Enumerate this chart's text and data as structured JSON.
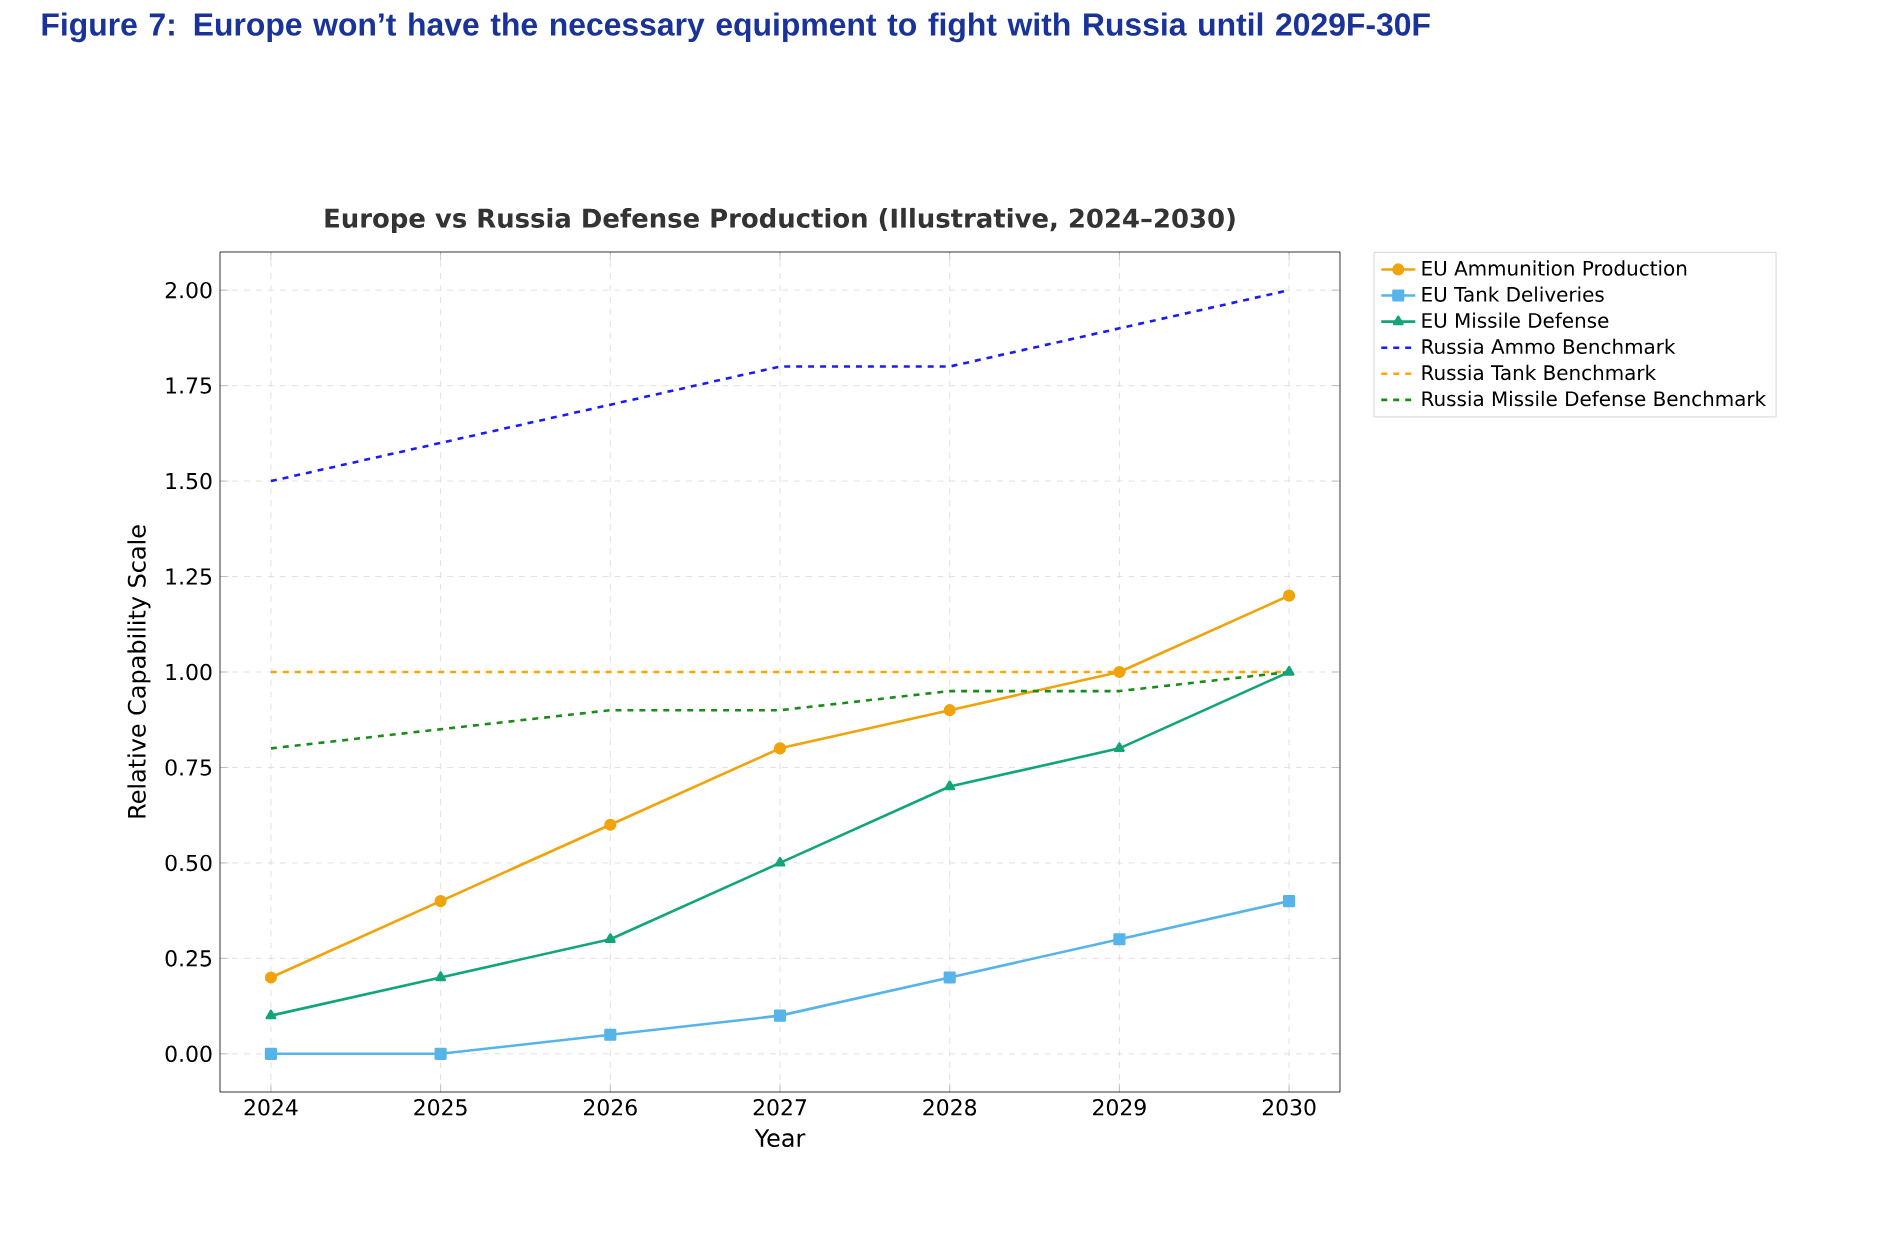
{
  "chart_data": {
    "type": "line",
    "title": "Figure 7: Europe won’t have the necessary equipment to fight with Russia until 2029F-30F",
    "subtitle": "Europe vs Russia Defense Production (Illustrative, 2024–2030)",
    "xlabel": "Year",
    "ylabel": "Relative Capability Scale",
    "x": [
      2024,
      2025,
      2026,
      2027,
      2028,
      2029,
      2030
    ],
    "xlim": [
      2023.7,
      2030.3
    ],
    "xticks": [
      2024,
      2025,
      2026,
      2027,
      2028,
      2029,
      2030
    ],
    "ylim": [
      -0.1,
      2.1
    ],
    "yticks": [
      {
        "value": 0,
        "label": "0.00"
      },
      {
        "value": 0.25,
        "label": "0.25"
      },
      {
        "value": 0.5,
        "label": "0.50"
      },
      {
        "value": 0.75,
        "label": "0.75"
      },
      {
        "value": 1,
        "label": "1.00"
      },
      {
        "value": 1.25,
        "label": "1.25"
      },
      {
        "value": 1.5,
        "label": "1.50"
      },
      {
        "value": 1.75,
        "label": "1.75"
      },
      {
        "value": 2,
        "label": "2.00"
      }
    ],
    "grid": true,
    "legend": "right",
    "series": [
      {
        "name": "EU Ammunition Production",
        "color": "#f0a30a",
        "marker": "circle",
        "line_style": "solid",
        "values": [
          0.2,
          0.4,
          0.6,
          0.8,
          0.9,
          1.0,
          1.2
        ]
      },
      {
        "name": "EU Tank Deliveries",
        "color": "#56b4e9",
        "marker": "square",
        "line_style": "solid",
        "values": [
          0,
          0,
          0.05,
          0.1,
          0.2,
          0.3,
          0.4
        ]
      },
      {
        "name": "EU Missile Defense",
        "color": "#12a579",
        "marker": "triangle",
        "line_style": "solid",
        "values": [
          0.1,
          0.2,
          0.3,
          0.5,
          0.7,
          0.8,
          1.0
        ]
      },
      {
        "name": "Russia Ammo Benchmark",
        "color": "#1a1aff",
        "marker": "none",
        "line_style": "dashed",
        "values": [
          1.5,
          1.6,
          1.7,
          1.8,
          1.8,
          1.9,
          2.0
        ]
      },
      {
        "name": "Russia Tank Benchmark",
        "color": "#ffa500",
        "marker": "none",
        "line_style": "dashed",
        "values": [
          1.0,
          1.0,
          1.0,
          1.0,
          1.0,
          1.0,
          1.0
        ]
      },
      {
        "name": "Russia Missile Defense Benchmark",
        "color": "#1a8c1a",
        "marker": "none",
        "line_style": "dashed",
        "values": [
          0.8,
          0.85,
          0.9,
          0.9,
          0.95,
          0.95,
          1.0
        ]
      }
    ]
  }
}
